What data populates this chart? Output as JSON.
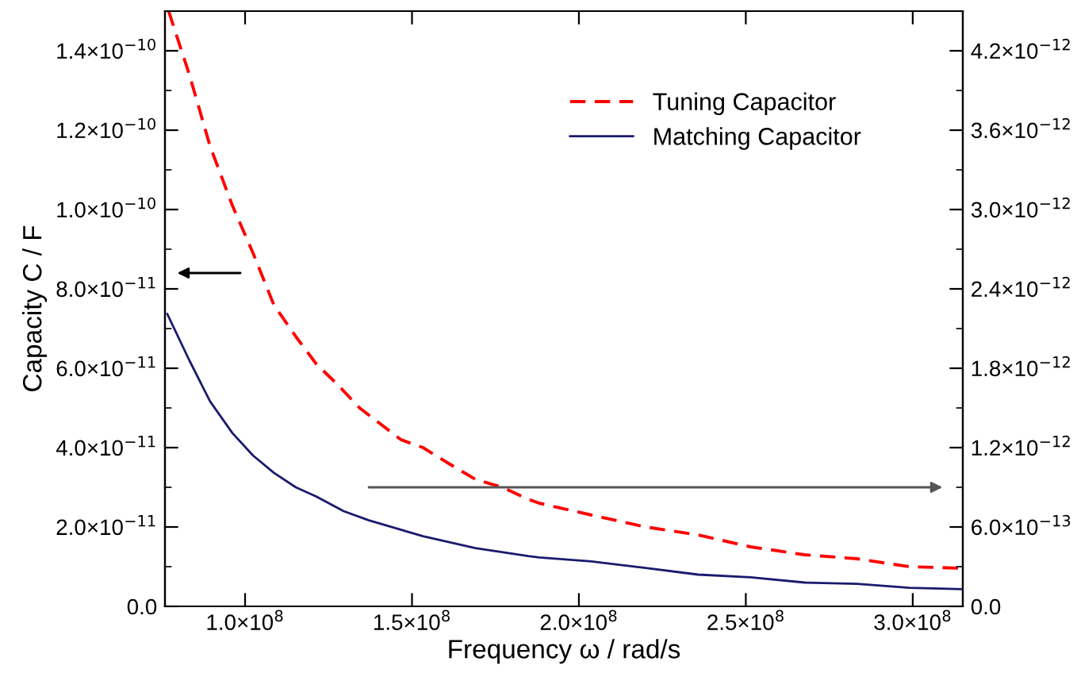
{
  "chart_data": {
    "type": "line",
    "xlabel": "Frequency ω / rad/s",
    "ylabel": "Capacity C / F",
    "legend": "top right",
    "grid": false,
    "xlim": [
      76000000.0,
      315000000.0
    ],
    "xticks": [
      {
        "value": 100000000.0,
        "label": "1.0×10$^{8}$"
      },
      {
        "value": 150000000.0,
        "label": "1.5×10$^{8}$"
      },
      {
        "value": 200000000.0,
        "label": "2.0×10$^{8}$"
      },
      {
        "value": 250000000.0,
        "label": "2.5×10$^{8}$"
      },
      {
        "value": 300000000.0,
        "label": "3.0×10$^{8}$"
      }
    ],
    "ylim": [
      0,
      1.5e-10
    ],
    "yticks": [
      {
        "value": 0,
        "label": "0.0"
      },
      {
        "value": 2e-11,
        "label": "2.0×10$^{−11}$"
      },
      {
        "value": 4e-11,
        "label": "4.0×10$^{−11}$"
      },
      {
        "value": 6e-11,
        "label": "6.0×10$^{−11}$"
      },
      {
        "value": 8e-11,
        "label": "8.0×10$^{−11}$"
      },
      {
        "value": 1e-10,
        "label": "1.0×10$^{−10}$"
      },
      {
        "value": 1.2e-10,
        "label": "1.2×10$^{−10}$"
      },
      {
        "value": 1.4e-10,
        "label": "1.4×10$^{−10}$"
      }
    ],
    "y2lim": [
      0,
      4.5e-12
    ],
    "y2ticks": [
      {
        "value": 0,
        "label": "0.0"
      },
      {
        "value": 6e-13,
        "label": "6.0×10$^{−13}$"
      },
      {
        "value": 1.2e-12,
        "label": "1.2×10$^{−12}$"
      },
      {
        "value": 1.8e-12,
        "label": "1.8×10$^{−12}$"
      },
      {
        "value": 2.4e-12,
        "label": "2.4×10$^{−12}$"
      },
      {
        "value": 3e-12,
        "label": "3.0×10$^{−12}$"
      },
      {
        "value": 3.6e-12,
        "label": "3.6×10$^{−12}$"
      },
      {
        "value": 4.2e-12,
        "label": "4.2×10$^{−12}$"
      }
    ],
    "series": [
      {
        "name": "Tuning Capacitor",
        "color": "#ff0000",
        "line_style": "dashed",
        "x": [
          77100000.0,
          83300000.0,
          89500000.0,
          96200000.0,
          102400000.0,
          108600000.0,
          115200000.0,
          121400000.0,
          127600000.0,
          134300000.0,
          140500000.0,
          146700000.0,
          153300000.0,
          161000000.0,
          169000000.0,
          177100000.0,
          184800000.0,
          188100000.0,
          203800000.0,
          220000000.0,
          235700000.0,
          251400000.0,
          267600000.0,
          283300000.0,
          299000000.0,
          315000000.0
        ],
        "values": [
          1.5e-10,
          1.34e-10,
          1.16e-10,
          1.01e-10,
          8.9e-11,
          7.6e-11,
          6.8e-11,
          6.1e-11,
          5.6e-11,
          5e-11,
          4.6e-11,
          4.2e-11,
          4e-11,
          3.6e-11,
          3.2e-11,
          3e-11,
          2.7e-11,
          2.6e-11,
          2.3e-11,
          2e-11,
          1.8e-11,
          1.5e-11,
          1.3e-11,
          1.2e-11,
          1e-11,
          9.6e-12
        ]
      },
      {
        "name": "Matching Capacitor",
        "color": "#1a1a6e",
        "line_style": "solid",
        "axis": "y2",
        "x": [
          76700000.0,
          83300000.0,
          89500000.0,
          96200000.0,
          102400000.0,
          108600000.0,
          115200000.0,
          121400000.0,
          129500000.0,
          137100000.0,
          145200000.0,
          153300000.0,
          169000000.0,
          184800000.0,
          188100000.0,
          203800000.0,
          220000000.0,
          235700000.0,
          251400000.0,
          267600000.0,
          283300000.0,
          299000000.0,
          315000000.0
        ],
        "values": [
          2.21e-12,
          1.86e-12,
          1.55e-12,
          1.31e-12,
          1.14e-12,
          1.01e-12,
          9e-13,
          8.3e-13,
          7.2e-13,
          6.5e-13,
          5.9e-13,
          5.3e-13,
          4.4e-13,
          3.8e-13,
          3.7e-13,
          3.4e-13,
          2.9e-13,
          2.4e-13,
          2.2e-13,
          1.8e-13,
          1.7e-13,
          1.4e-13,
          1.3e-13
        ]
      }
    ]
  }
}
